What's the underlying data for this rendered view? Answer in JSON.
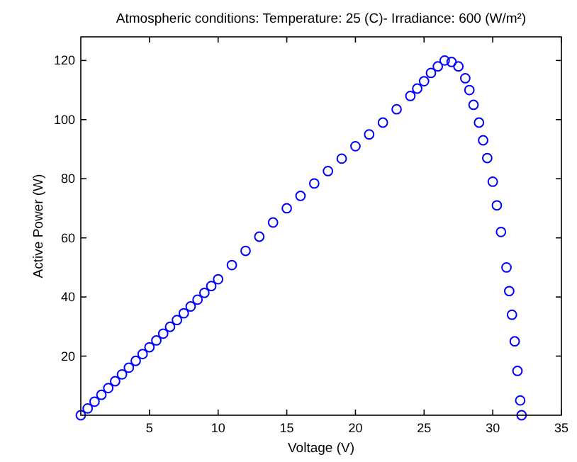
{
  "chart_data": {
    "type": "scatter",
    "title": "Atmospheric conditions: Temperature: 25 (C)- Irradiance: 600 (W/m²)",
    "xlabel": "Voltage (V)",
    "ylabel": "Active Power (W)",
    "marker": "circle",
    "grid": false,
    "xlim": [
      0,
      35
    ],
    "xticks": [
      5,
      10,
      15,
      20,
      25,
      30,
      35
    ],
    "ylim": [
      0,
      128
    ],
    "yticks": [
      20,
      40,
      60,
      80,
      100,
      120
    ],
    "series": [
      {
        "color": "#0000ff",
        "x": [
          0,
          0.5,
          1,
          1.5,
          2,
          2.5,
          3,
          3.5,
          4,
          4.5,
          5,
          5.5,
          6,
          6.5,
          7,
          7.5,
          8,
          8.5,
          9,
          9.5,
          10,
          11,
          12,
          13,
          14,
          15,
          16,
          17,
          18,
          19,
          20,
          21,
          22,
          23,
          24,
          24.5,
          25,
          25.5,
          26,
          26.5,
          27,
          27.5,
          28,
          28.3,
          28.6,
          29,
          29.3,
          29.6,
          30,
          30.3,
          30.6,
          31,
          31.2,
          31.4,
          31.6,
          31.8,
          32,
          32.1
        ],
        "values": [
          0,
          2.3,
          4.6,
          6.9,
          9.2,
          11.5,
          13.8,
          16.1,
          18.4,
          20.7,
          23,
          25.3,
          27.6,
          29.9,
          32.2,
          34.5,
          36.8,
          39.1,
          41.4,
          43.7,
          46,
          50.8,
          55.6,
          60.4,
          65.2,
          70,
          74.2,
          78.4,
          82.6,
          86.8,
          91,
          95,
          99,
          103.5,
          108,
          110.5,
          113,
          115.8,
          118,
          120,
          119.5,
          118,
          114,
          110,
          105,
          99,
          93,
          87,
          79,
          71,
          62,
          50,
          42,
          34,
          25,
          15,
          5,
          0
        ]
      }
    ]
  }
}
